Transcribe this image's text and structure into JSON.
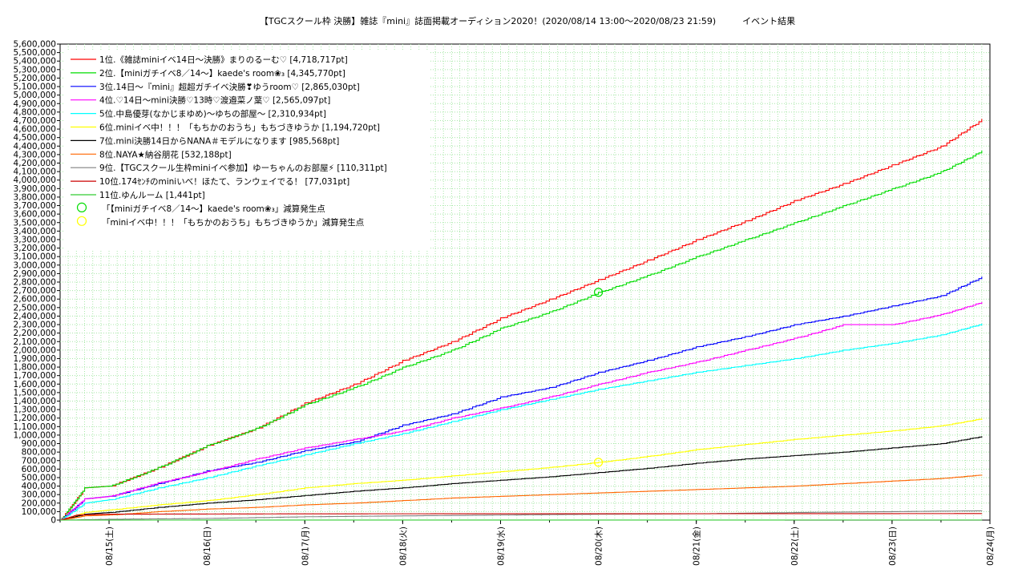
{
  "chart_data": {
    "type": "line",
    "title": "【TGCスクール枠 決勝】雑誌『mini』誌面掲載オーディション2020！(2020/08/14 13:00～2020/08/23 21:59)　　　イベント結果",
    "xlabel": "",
    "ylabel": "",
    "ylim": [
      0,
      5600000
    ],
    "xlim": [
      "08/14 12:00",
      "08/24 00:00"
    ],
    "y_ticks": [
      "0",
      "100,000",
      "200,000",
      "300,000",
      "400,000",
      "500,000",
      "600,000",
      "700,000",
      "800,000",
      "900,000",
      "1,000,000",
      "1,100,000",
      "1,200,000",
      "1,300,000",
      "1,400,000",
      "1,500,000",
      "1,600,000",
      "1,700,000",
      "1,800,000",
      "1,900,000",
      "2,000,000",
      "2,100,000",
      "2,200,000",
      "2,300,000",
      "2,400,000",
      "2,500,000",
      "2,600,000",
      "2,700,000",
      "2,800,000",
      "2,900,000",
      "3,000,000",
      "3,100,000",
      "3,200,000",
      "3,300,000",
      "3,400,000",
      "3,500,000",
      "3,600,000",
      "3,700,000",
      "3,800,000",
      "3,900,000",
      "4,000,000",
      "4,100,000",
      "4,200,000",
      "4,300,000",
      "4,400,000",
      "4,500,000",
      "4,600,000",
      "4,700,000",
      "4,800,000",
      "4,900,000",
      "5,000,000",
      "5,100,000",
      "5,200,000",
      "5,300,000",
      "5,400,000",
      "5,500,000",
      "5,600,000"
    ],
    "x_ticks": [
      "08/15(土)",
      "08/16(日)",
      "08/17(月)",
      "08/18(火)",
      "08/19(水)",
      "08/20(木)",
      "08/21(金)",
      "08/22(土)",
      "08/23(日)",
      "08/24(月)"
    ],
    "grid": true,
    "legend_position": "top-left",
    "x_days": [
      "08/14",
      "08/15",
      "08/16",
      "08/17",
      "08/18",
      "08/19",
      "08/20",
      "08/21",
      "08/22",
      "08/23",
      "08/24"
    ],
    "series": [
      {
        "name": "1位.《雑誌miniイベ14日～決勝》まりのるーむ♡ [4,718,717pt]",
        "color": "#ff0000",
        "points": [
          [
            "08/14 12:00",
            0
          ],
          [
            "08/14 18:00",
            380000
          ],
          [
            "08/15 00:00",
            400000
          ],
          [
            "08/15 12:00",
            620000
          ],
          [
            "08/16 00:00",
            880000
          ],
          [
            "08/16 12:00",
            1080000
          ],
          [
            "08/17 00:00",
            1380000
          ],
          [
            "08/17 12:00",
            1600000
          ],
          [
            "08/18 00:00",
            1880000
          ],
          [
            "08/18 12:00",
            2100000
          ],
          [
            "08/19 00:00",
            2380000
          ],
          [
            "08/19 12:00",
            2600000
          ],
          [
            "08/20 00:00",
            2830000
          ],
          [
            "08/20 12:00",
            3060000
          ],
          [
            "08/21 00:00",
            3300000
          ],
          [
            "08/21 12:00",
            3520000
          ],
          [
            "08/22 00:00",
            3760000
          ],
          [
            "08/22 12:00",
            3960000
          ],
          [
            "08/23 00:00",
            4180000
          ],
          [
            "08/23 12:00",
            4400000
          ],
          [
            "08/23 22:00",
            4720000
          ]
        ]
      },
      {
        "name": "2位.【miniガチイベ8／14～】kaede's room❀₃ [4,345,770pt]",
        "color": "#00dd00",
        "points": [
          [
            "08/14 12:00",
            0
          ],
          [
            "08/14 18:00",
            380000
          ],
          [
            "08/15 00:00",
            400000
          ],
          [
            "08/15 12:00",
            620000
          ],
          [
            "08/16 00:00",
            880000
          ],
          [
            "08/16 12:00",
            1080000
          ],
          [
            "08/17 00:00",
            1360000
          ],
          [
            "08/17 12:00",
            1560000
          ],
          [
            "08/18 00:00",
            1800000
          ],
          [
            "08/18 12:00",
            2000000
          ],
          [
            "08/19 00:00",
            2260000
          ],
          [
            "08/19 12:00",
            2450000
          ],
          [
            "08/20 00:00",
            2680000
          ],
          [
            "08/20 12:00",
            2880000
          ],
          [
            "08/21 00:00",
            3100000
          ],
          [
            "08/21 12:00",
            3300000
          ],
          [
            "08/22 00:00",
            3500000
          ],
          [
            "08/22 12:00",
            3700000
          ],
          [
            "08/23 00:00",
            3900000
          ],
          [
            "08/23 12:00",
            4100000
          ],
          [
            "08/23 22:00",
            4345770
          ]
        ]
      },
      {
        "name": "3位.14日～『mini』超超ガチイベ決勝❣ゆうroom♡ [2,865,030pt]",
        "color": "#0000ff",
        "points": [
          [
            "08/14 12:00",
            0
          ],
          [
            "08/14 18:00",
            250000
          ],
          [
            "08/15 00:00",
            280000
          ],
          [
            "08/15 12:00",
            430000
          ],
          [
            "08/16 00:00",
            580000
          ],
          [
            "08/16 12:00",
            680000
          ],
          [
            "08/17 00:00",
            820000
          ],
          [
            "08/17 12:00",
            920000
          ],
          [
            "08/18 00:00",
            1120000
          ],
          [
            "08/18 12:00",
            1250000
          ],
          [
            "08/19 00:00",
            1450000
          ],
          [
            "08/19 12:00",
            1560000
          ],
          [
            "08/20 00:00",
            1740000
          ],
          [
            "08/20 12:00",
            1880000
          ],
          [
            "08/21 00:00",
            2040000
          ],
          [
            "08/21 12:00",
            2160000
          ],
          [
            "08/22 00:00",
            2300000
          ],
          [
            "08/22 12:00",
            2400000
          ],
          [
            "08/23 00:00",
            2520000
          ],
          [
            "08/23 12:00",
            2640000
          ],
          [
            "08/23 22:00",
            2865030
          ]
        ]
      },
      {
        "name": "4位.♡14日～mini決勝♡13時♡渡邉菜ノ葉♡ [2,565,097pt]",
        "color": "#ff00ff",
        "points": [
          [
            "08/14 12:00",
            0
          ],
          [
            "08/14 18:00",
            250000
          ],
          [
            "08/15 00:00",
            280000
          ],
          [
            "08/15 12:00",
            440000
          ],
          [
            "08/16 00:00",
            570000
          ],
          [
            "08/16 12:00",
            720000
          ],
          [
            "08/17 00:00",
            850000
          ],
          [
            "08/17 12:00",
            950000
          ],
          [
            "08/18 00:00",
            1050000
          ],
          [
            "08/18 12:00",
            1200000
          ],
          [
            "08/19 00:00",
            1320000
          ],
          [
            "08/19 12:00",
            1450000
          ],
          [
            "08/20 00:00",
            1600000
          ],
          [
            "08/20 12:00",
            1740000
          ],
          [
            "08/21 00:00",
            1860000
          ],
          [
            "08/21 12:00",
            2000000
          ],
          [
            "08/22 00:00",
            2140000
          ],
          [
            "08/22 12:00",
            2300000
          ],
          [
            "08/23 00:00",
            2300000
          ],
          [
            "08/23 12:00",
            2420000
          ],
          [
            "08/23 22:00",
            2565097
          ]
        ]
      },
      {
        "name": "5位.中島優芽(なかじまゆめ)～ゆちの部屋～ [2,310,934pt]",
        "color": "#00ffff",
        "points": [
          [
            "08/14 12:00",
            0
          ],
          [
            "08/14 18:00",
            200000
          ],
          [
            "08/15 00:00",
            240000
          ],
          [
            "08/15 12:00",
            380000
          ],
          [
            "08/16 00:00",
            500000
          ],
          [
            "08/16 12:00",
            640000
          ],
          [
            "08/17 00:00",
            770000
          ],
          [
            "08/17 12:00",
            900000
          ],
          [
            "08/18 00:00",
            1020000
          ],
          [
            "08/18 12:00",
            1160000
          ],
          [
            "08/19 00:00",
            1300000
          ],
          [
            "08/19 12:00",
            1420000
          ],
          [
            "08/20 00:00",
            1540000
          ],
          [
            "08/20 12:00",
            1640000
          ],
          [
            "08/21 00:00",
            1740000
          ],
          [
            "08/21 12:00",
            1820000
          ],
          [
            "08/22 00:00",
            1900000
          ],
          [
            "08/22 12:00",
            2000000
          ],
          [
            "08/23 00:00",
            2080000
          ],
          [
            "08/23 12:00",
            2180000
          ],
          [
            "08/23 22:00",
            2310934
          ]
        ]
      },
      {
        "name": "6位.miniイベ中！！！「もちかのおうち」もちづきゆうか [1,194,720pt]",
        "color": "#ffff00",
        "points": [
          [
            "08/14 12:00",
            0
          ],
          [
            "08/14 18:00",
            90000
          ],
          [
            "08/15 00:00",
            120000
          ],
          [
            "08/15 12:00",
            180000
          ],
          [
            "08/16 00:00",
            230000
          ],
          [
            "08/16 12:00",
            300000
          ],
          [
            "08/17 00:00",
            380000
          ],
          [
            "08/17 12:00",
            430000
          ],
          [
            "08/18 00:00",
            470000
          ],
          [
            "08/18 12:00",
            520000
          ],
          [
            "08/19 00:00",
            570000
          ],
          [
            "08/19 12:00",
            620000
          ],
          [
            "08/20 00:00",
            680000
          ],
          [
            "08/20 12:00",
            750000
          ],
          [
            "08/21 00:00",
            830000
          ],
          [
            "08/21 12:00",
            890000
          ],
          [
            "08/22 00:00",
            950000
          ],
          [
            "08/22 12:00",
            1000000
          ],
          [
            "08/23 00:00",
            1050000
          ],
          [
            "08/23 12:00",
            1110000
          ],
          [
            "08/23 22:00",
            1194720
          ]
        ]
      },
      {
        "name": "7位.mini決勝14日からNANA＃モデルになります [985,568pt]",
        "color": "#000000",
        "points": [
          [
            "08/14 12:00",
            0
          ],
          [
            "08/14 18:00",
            70000
          ],
          [
            "08/15 00:00",
            90000
          ],
          [
            "08/15 12:00",
            150000
          ],
          [
            "08/16 00:00",
            200000
          ],
          [
            "08/16 12:00",
            240000
          ],
          [
            "08/17 00:00",
            290000
          ],
          [
            "08/17 12:00",
            340000
          ],
          [
            "08/18 00:00",
            380000
          ],
          [
            "08/18 12:00",
            430000
          ],
          [
            "08/19 00:00",
            470000
          ],
          [
            "08/19 12:00",
            510000
          ],
          [
            "08/20 00:00",
            560000
          ],
          [
            "08/20 12:00",
            610000
          ],
          [
            "08/21 00:00",
            670000
          ],
          [
            "08/21 12:00",
            720000
          ],
          [
            "08/22 00:00",
            760000
          ],
          [
            "08/22 12:00",
            800000
          ],
          [
            "08/23 00:00",
            850000
          ],
          [
            "08/23 12:00",
            900000
          ],
          [
            "08/23 22:00",
            985568
          ]
        ]
      },
      {
        "name": "8位.NAYA★納谷朋花 [532,188pt]",
        "color": "#ff6600",
        "points": [
          [
            "08/14 12:00",
            0
          ],
          [
            "08/14 18:00",
            50000
          ],
          [
            "08/15 00:00",
            60000
          ],
          [
            "08/15 12:00",
            100000
          ],
          [
            "08/16 00:00",
            130000
          ],
          [
            "08/16 12:00",
            150000
          ],
          [
            "08/17 00:00",
            180000
          ],
          [
            "08/17 12:00",
            200000
          ],
          [
            "08/18 00:00",
            230000
          ],
          [
            "08/18 12:00",
            260000
          ],
          [
            "08/19 00:00",
            280000
          ],
          [
            "08/19 12:00",
            300000
          ],
          [
            "08/20 00:00",
            320000
          ],
          [
            "08/20 12:00",
            340000
          ],
          [
            "08/21 00:00",
            360000
          ],
          [
            "08/21 12:00",
            380000
          ],
          [
            "08/22 00:00",
            400000
          ],
          [
            "08/22 12:00",
            430000
          ],
          [
            "08/23 00:00",
            460000
          ],
          [
            "08/23 12:00",
            490000
          ],
          [
            "08/23 22:00",
            532188
          ]
        ]
      },
      {
        "name": "9位.【TGCスクール生枠miniイベ参加】ゆーちゃんのお部屋⚡ [110,311pt]",
        "color": "#808080",
        "points": [
          [
            "08/14 12:00",
            0
          ],
          [
            "08/15 00:00",
            10000
          ],
          [
            "08/16 00:00",
            20000
          ],
          [
            "08/17 00:00",
            40000
          ],
          [
            "08/18 00:00",
            50000
          ],
          [
            "08/19 00:00",
            60000
          ],
          [
            "08/20 00:00",
            70000
          ],
          [
            "08/21 00:00",
            75000
          ],
          [
            "08/22 00:00",
            90000
          ],
          [
            "08/23 00:00",
            100000
          ],
          [
            "08/23 22:00",
            110311
          ]
        ]
      },
      {
        "name": "10位.174ｾﾝﾁのminiいべ！ほたて、ランウェイでる！ [77,031pt]",
        "color": "#cc0000",
        "points": [
          [
            "08/14 12:00",
            0
          ],
          [
            "08/14 16:00",
            60000
          ],
          [
            "08/15 00:00",
            70000
          ],
          [
            "08/17 00:00",
            74000
          ],
          [
            "08/20 00:00",
            75000
          ],
          [
            "08/23 22:00",
            77031
          ]
        ]
      },
      {
        "name": "11位.ゆんルーム [1,441pt]",
        "color": "#33cc33",
        "points": [
          [
            "08/14 12:00",
            0
          ],
          [
            "08/23 22:00",
            1441
          ]
        ]
      }
    ],
    "markers": [
      {
        "label": "「【miniガチイベ8／14～】kaede's room❀₃」減算発生点",
        "color": "#00dd00",
        "x": "08/20 00:00",
        "y": 2680000
      },
      {
        "label": "「miniイベ中！！！「もちかのおうち」もちづきゆうか」減算発生点",
        "color": "#ffff00",
        "x": "08/20 00:00",
        "y": 680000
      }
    ]
  }
}
